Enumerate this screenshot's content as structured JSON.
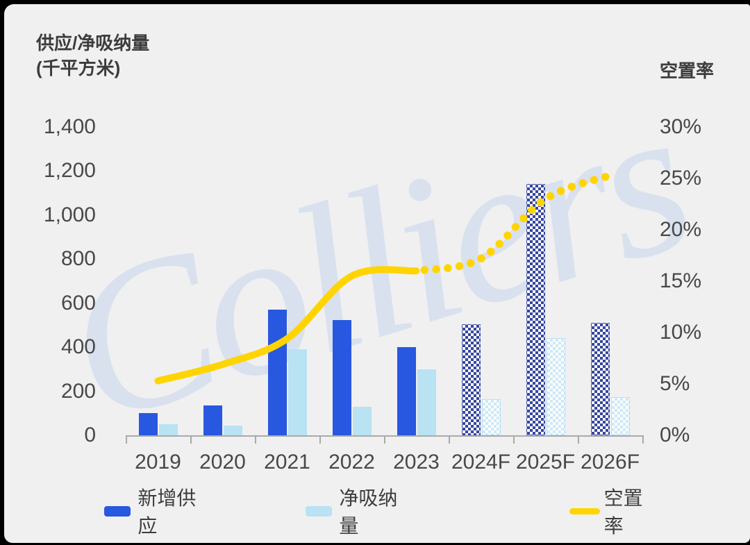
{
  "watermark": {
    "text": "Colliers"
  },
  "left_axis": {
    "title_line1": "供应/净吸纳量",
    "title_line2": "(千平方米)",
    "ticks": [
      {
        "label": "1,400",
        "value": 1400
      },
      {
        "label": "1,200",
        "value": 1200
      },
      {
        "label": "1,000",
        "value": 1000
      },
      {
        "label": "800",
        "value": 800
      },
      {
        "label": "600",
        "value": 600
      },
      {
        "label": "400",
        "value": 400
      },
      {
        "label": "200",
        "value": 200
      },
      {
        "label": "0",
        "value": 0
      }
    ]
  },
  "right_axis": {
    "title": "空置率",
    "ticks": [
      {
        "label": "30%",
        "value": 30
      },
      {
        "label": "25%",
        "value": 25
      },
      {
        "label": "20%",
        "value": 20
      },
      {
        "label": "15%",
        "value": 15
      },
      {
        "label": "10%",
        "value": 10
      },
      {
        "label": "5%",
        "value": 5
      },
      {
        "label": "0%",
        "value": 0
      }
    ]
  },
  "legend": [
    {
      "label": "新增供应",
      "type": "bar",
      "color": "#2857e0"
    },
    {
      "label": "净吸纳量",
      "type": "bar",
      "color": "#b9e2f3"
    },
    {
      "label": "空置率",
      "type": "line",
      "color": "#ffd400"
    }
  ],
  "colors": {
    "supply": "#2857e0",
    "absorption": "#b9e2f3",
    "vacancy_line": "#ffd400",
    "background": "#f0f0f1",
    "watermark": "#d9e1ee",
    "axis": "#a9a9a9",
    "text": "#484848"
  },
  "chart_data": {
    "type": "bar+line combo",
    "title": "",
    "categories": [
      "2019",
      "2020",
      "2021",
      "2022",
      "2023",
      "2024F",
      "2025F",
      "2026F"
    ],
    "forecast_start_index": 5,
    "left_axis_range": [
      0,
      1400
    ],
    "right_axis_range": [
      0,
      30
    ],
    "grid": false,
    "legend_position": "bottom",
    "series": [
      {
        "name": "新增供应",
        "type": "bar",
        "axis": "left",
        "values": [
          100,
          135,
          570,
          525,
          400,
          505,
          1140,
          510
        ]
      },
      {
        "name": "净吸纳量",
        "type": "bar",
        "axis": "left",
        "values": [
          50,
          45,
          390,
          130,
          300,
          165,
          440,
          175
        ]
      },
      {
        "name": "空置率",
        "type": "line",
        "axis": "right",
        "unit": "%",
        "dotted_from_index": 4,
        "values": [
          5.3,
          6.9,
          9.4,
          15.5,
          16,
          17.2,
          23,
          25.3
        ]
      }
    ]
  }
}
